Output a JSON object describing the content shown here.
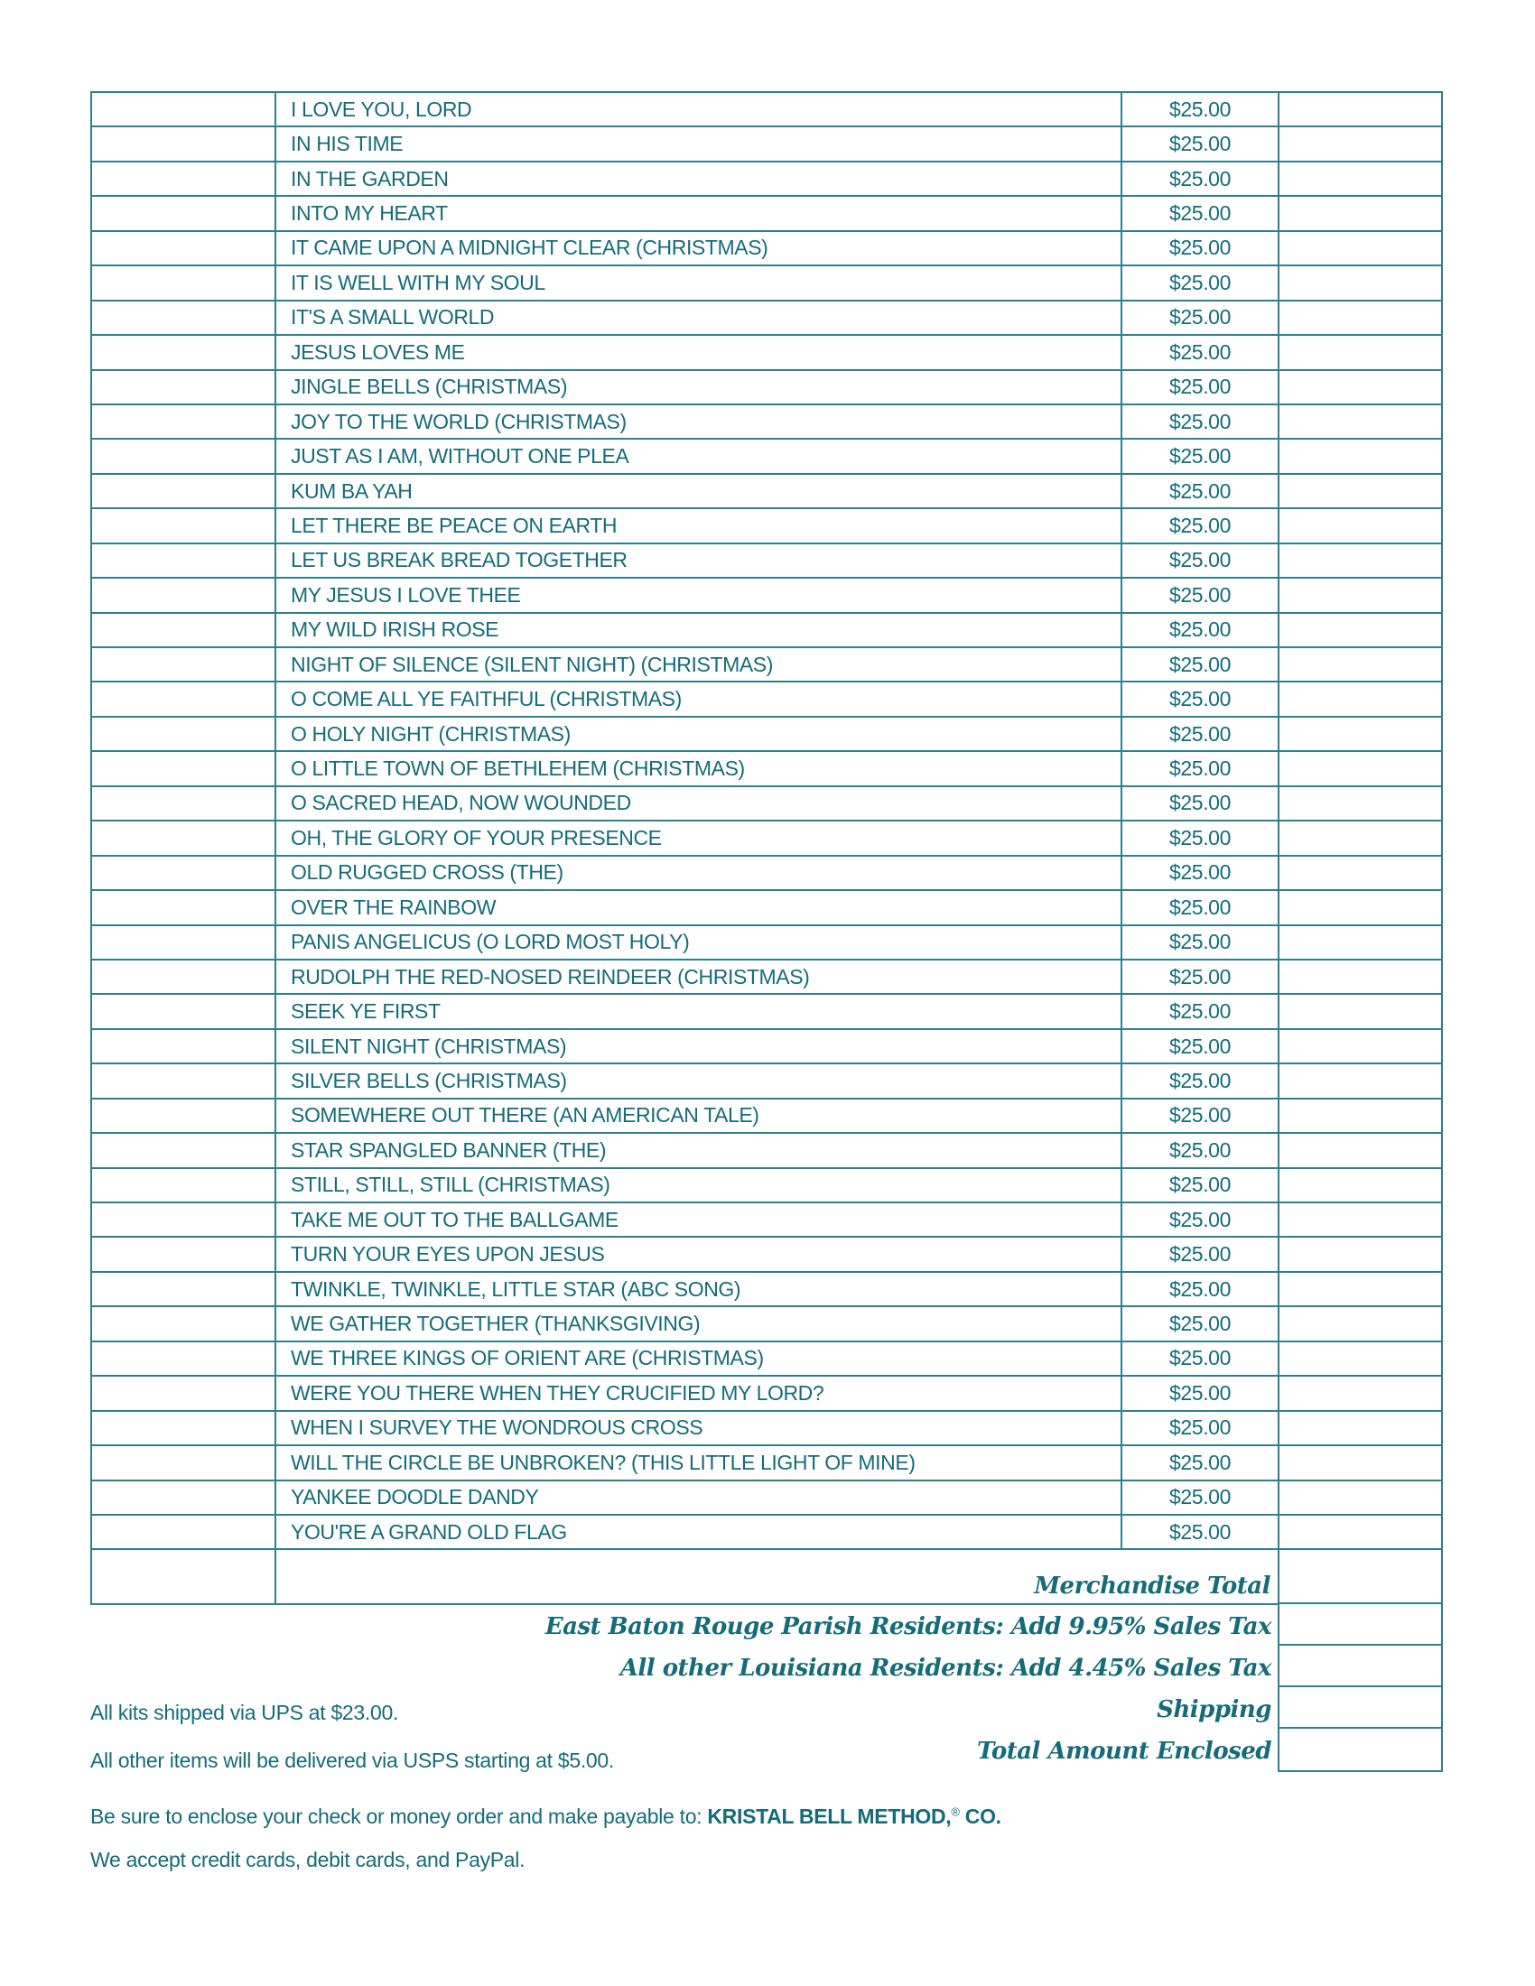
{
  "colors": {
    "teal_text": "#156c78",
    "teal_border": "#2e808b"
  },
  "table": {
    "unit_price": "$25.00",
    "rows": [
      {
        "title": "I LOVE YOU, LORD",
        "price": "$25.00"
      },
      {
        "title": "IN HIS TIME",
        "price": "$25.00"
      },
      {
        "title": "IN THE GARDEN",
        "price": "$25.00"
      },
      {
        "title": "INTO MY HEART",
        "price": "$25.00"
      },
      {
        "title": "IT CAME UPON A MIDNIGHT CLEAR (CHRISTMAS)",
        "price": "$25.00"
      },
      {
        "title": "IT IS WELL WITH MY SOUL",
        "price": "$25.00"
      },
      {
        "title": "IT'S A SMALL WORLD",
        "price": "$25.00"
      },
      {
        "title": "JESUS LOVES ME",
        "price": "$25.00"
      },
      {
        "title": "JINGLE BELLS (CHRISTMAS)",
        "price": "$25.00"
      },
      {
        "title": "JOY TO THE WORLD (CHRISTMAS)",
        "price": "$25.00"
      },
      {
        "title": "JUST AS I AM, WITHOUT ONE PLEA",
        "price": "$25.00"
      },
      {
        "title": "KUM BA YAH",
        "price": "$25.00"
      },
      {
        "title": "LET THERE BE PEACE ON EARTH",
        "price": "$25.00"
      },
      {
        "title": "LET US BREAK BREAD TOGETHER",
        "price": "$25.00"
      },
      {
        "title": "MY JESUS I LOVE THEE",
        "price": "$25.00"
      },
      {
        "title": "MY WILD IRISH ROSE",
        "price": "$25.00"
      },
      {
        "title": "NIGHT OF SILENCE (SILENT NIGHT) (CHRISTMAS)",
        "price": "$25.00"
      },
      {
        "title": "O COME ALL YE FAITHFUL (CHRISTMAS)",
        "price": "$25.00"
      },
      {
        "title": "O HOLY NIGHT (CHRISTMAS)",
        "price": "$25.00"
      },
      {
        "title": "O LITTLE TOWN OF BETHLEHEM (CHRISTMAS)",
        "price": "$25.00"
      },
      {
        "title": "O SACRED HEAD, NOW WOUNDED",
        "price": "$25.00"
      },
      {
        "title": "OH, THE GLORY OF YOUR PRESENCE",
        "price": "$25.00"
      },
      {
        "title": "OLD RUGGED CROSS (THE)",
        "price": "$25.00"
      },
      {
        "title": "OVER THE RAINBOW",
        "price": "$25.00"
      },
      {
        "title": "PANIS ANGELICUS (O LORD MOST HOLY)",
        "price": "$25.00"
      },
      {
        "title": "RUDOLPH THE RED-NOSED REINDEER (CHRISTMAS)",
        "price": "$25.00"
      },
      {
        "title": "SEEK YE FIRST",
        "price": "$25.00"
      },
      {
        "title": "SILENT NIGHT (CHRISTMAS)",
        "price": "$25.00"
      },
      {
        "title": "SILVER BELLS (CHRISTMAS)",
        "price": "$25.00"
      },
      {
        "title": "SOMEWHERE OUT THERE (AN AMERICAN TALE)",
        "price": "$25.00"
      },
      {
        "title": "STAR SPANGLED BANNER (THE)",
        "price": "$25.00"
      },
      {
        "title": "STILL, STILL, STILL (CHRISTMAS)",
        "price": "$25.00"
      },
      {
        "title": "TAKE ME OUT TO THE BALLGAME",
        "price": "$25.00"
      },
      {
        "title": "TURN YOUR EYES UPON JESUS",
        "price": "$25.00"
      },
      {
        "title": "TWINKLE, TWINKLE, LITTLE STAR (ABC SONG)",
        "price": "$25.00"
      },
      {
        "title": "WE GATHER TOGETHER (THANKSGIVING)",
        "price": "$25.00"
      },
      {
        "title": "WE THREE KINGS OF ORIENT ARE (CHRISTMAS)",
        "price": "$25.00"
      },
      {
        "title": "WERE YOU THERE WHEN THEY CRUCIFIED MY LORD?",
        "price": "$25.00"
      },
      {
        "title": "WHEN I SURVEY THE WONDROUS CROSS",
        "price": "$25.00"
      },
      {
        "title": "WILL THE CIRCLE BE UNBROKEN? (THIS LITTLE LIGHT OF MINE)",
        "price": "$25.00"
      },
      {
        "title": "YANKEE DOODLE DANDY",
        "price": "$25.00"
      },
      {
        "title": "YOU'RE A GRAND OLD FLAG",
        "price": "$25.00"
      }
    ]
  },
  "totals": {
    "merchandise_total_label": "Merchandise Total",
    "tax_ebr_label": "East Baton Rouge Parish Residents: Add 9.95% Sales Tax",
    "tax_la_label": "All other Louisiana Residents: Add 4.45% Sales Tax",
    "shipping_label": "Shipping",
    "total_enclosed_label": "Total Amount Enclosed"
  },
  "notes": {
    "ups": "All kits shipped via UPS at $23.00.",
    "usps": "All other items will be delivered via USPS starting at $5.00.",
    "payable_prefix": "Be sure to enclose your check or money order and make payable to: ",
    "payable_company": "KRISTAL BELL METHOD,",
    "payable_reg": "®",
    "payable_suffix": " CO.",
    "payment_methods": "We accept credit cards, debit cards, and PayPal."
  }
}
